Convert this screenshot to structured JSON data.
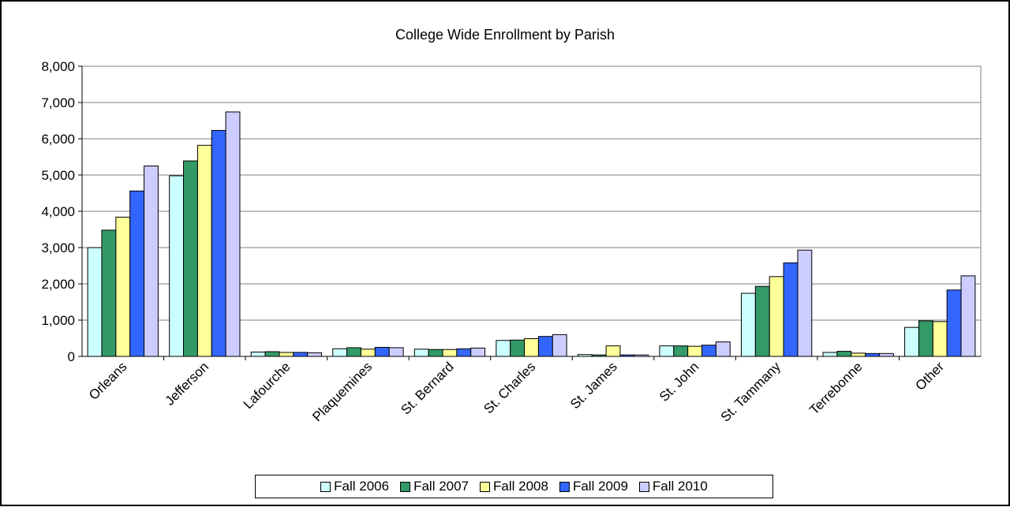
{
  "chart_data": {
    "type": "bar",
    "title": "College Wide Enrollment by Parish",
    "xlabel": "",
    "ylabel": "",
    "ylim": [
      0,
      8000
    ],
    "y_ticks": [
      "0",
      "1,000",
      "2,000",
      "3,000",
      "4,000",
      "5,000",
      "6,000",
      "7,000",
      "8,000"
    ],
    "grid": true,
    "legend_position": "bottom",
    "categories": [
      "Orleans",
      "Jefferson",
      "Lafourche",
      "Plaquemines",
      "St. Bernard",
      "St. Charles",
      "St. James",
      "St. John",
      "St. Tammany",
      "Terrebonne",
      "Other"
    ],
    "series": [
      {
        "name": "Fall 2006",
        "color": "#ccffff",
        "values": [
          3000,
          4980,
          120,
          210,
          200,
          440,
          50,
          290,
          1740,
          110,
          800
        ]
      },
      {
        "name": "Fall 2007",
        "color": "#339966",
        "values": [
          3480,
          5390,
          130,
          240,
          190,
          450,
          40,
          290,
          1930,
          140,
          980
        ]
      },
      {
        "name": "Fall 2008",
        "color": "#ffff99",
        "values": [
          3840,
          5820,
          110,
          200,
          190,
          490,
          290,
          280,
          2200,
          90,
          960
        ]
      },
      {
        "name": "Fall 2009",
        "color": "#3366ff",
        "values": [
          4560,
          6230,
          110,
          250,
          210,
          550,
          40,
          310,
          2580,
          80,
          1830
        ]
      },
      {
        "name": "Fall 2010",
        "color": "#ccccff",
        "values": [
          5250,
          6740,
          100,
          240,
          230,
          600,
          40,
          400,
          2930,
          80,
          2220
        ]
      }
    ]
  }
}
